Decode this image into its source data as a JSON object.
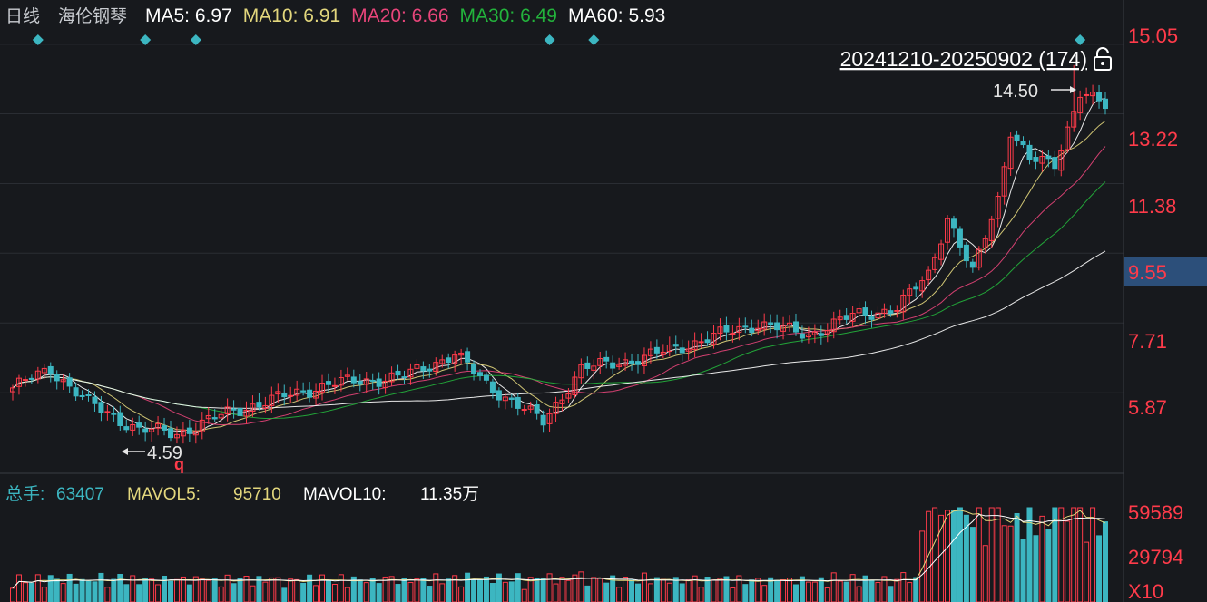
{
  "header": {
    "period": "日线",
    "stock_name": "海伦钢琴",
    "ma": [
      {
        "label": "MA5:",
        "value": "6.97",
        "color": "#ffffff"
      },
      {
        "label": "MA10:",
        "value": "6.91",
        "color": "#e3d77d"
      },
      {
        "label": "MA20:",
        "value": "6.66",
        "color": "#e8457a"
      },
      {
        "label": "MA30:",
        "value": "6.49",
        "color": "#23b33c"
      },
      {
        "label": "MA60:",
        "value": "5.93",
        "color": "#ffffff"
      }
    ]
  },
  "range_label": "20241210-20250902 (174)",
  "lock_icon": "lock-icon",
  "marker_color": "#3cb6c1",
  "price_axis": {
    "ticks": [
      "15.05",
      "13.22",
      "11.38",
      "9.55",
      "7.71",
      "5.87"
    ],
    "highlight": "9.55",
    "highlight_bg": "#2c4f7a",
    "label_color": "#ff3b4a"
  },
  "annotations": {
    "high": "14.50",
    "low": "4.59"
  },
  "volume_header": {
    "total_label": "总手:",
    "total_value": "63407",
    "mavol5_label": "MAVOL5:",
    "mavol5_value": "95710",
    "mavol10_label": "MAVOL10:",
    "mavol10_value": "11.35万"
  },
  "volume_axis": {
    "ticks": [
      "59589",
      "29794",
      "X10"
    ]
  },
  "colors": {
    "up": "#ff3b4a",
    "down": "#3cb6c1",
    "background": "#17191d",
    "grid": "#2a2d33"
  },
  "chart_data": {
    "type": "candlestick",
    "title": "海伦钢琴",
    "x_range": [
      "20241210",
      "20250902"
    ],
    "count": 174,
    "ylim": [
      3.8,
      15.5
    ],
    "high_point": 14.5,
    "low_point": 4.59,
    "key_points": [
      {
        "i": 0,
        "close": 6.0
      },
      {
        "i": 6,
        "close": 6.5
      },
      {
        "i": 12,
        "close": 5.6
      },
      {
        "i": 20,
        "close": 4.9
      },
      {
        "i": 26,
        "close": 4.8
      },
      {
        "i": 35,
        "close": 5.4
      },
      {
        "i": 50,
        "close": 6.1
      },
      {
        "i": 62,
        "close": 6.3
      },
      {
        "i": 70,
        "close": 6.9
      },
      {
        "i": 75,
        "close": 6.1
      },
      {
        "i": 84,
        "close": 5.1
      },
      {
        "i": 90,
        "close": 6.5
      },
      {
        "i": 100,
        "close": 6.8
      },
      {
        "i": 110,
        "close": 7.3
      },
      {
        "i": 118,
        "close": 7.7
      },
      {
        "i": 126,
        "close": 7.4
      },
      {
        "i": 133,
        "close": 7.9
      },
      {
        "i": 140,
        "close": 8.1
      },
      {
        "i": 145,
        "close": 9.0
      },
      {
        "i": 148,
        "close": 10.5
      },
      {
        "i": 152,
        "close": 9.0
      },
      {
        "i": 156,
        "close": 11.0
      },
      {
        "i": 158,
        "close": 12.8
      },
      {
        "i": 161,
        "close": 12.0
      },
      {
        "i": 165,
        "close": 11.9
      },
      {
        "i": 169,
        "close": 13.8
      },
      {
        "i": 173,
        "close": 13.4
      }
    ],
    "volume_ylim": [
      0,
      72000
    ],
    "volume_ticks": [
      59589,
      29794
    ]
  }
}
